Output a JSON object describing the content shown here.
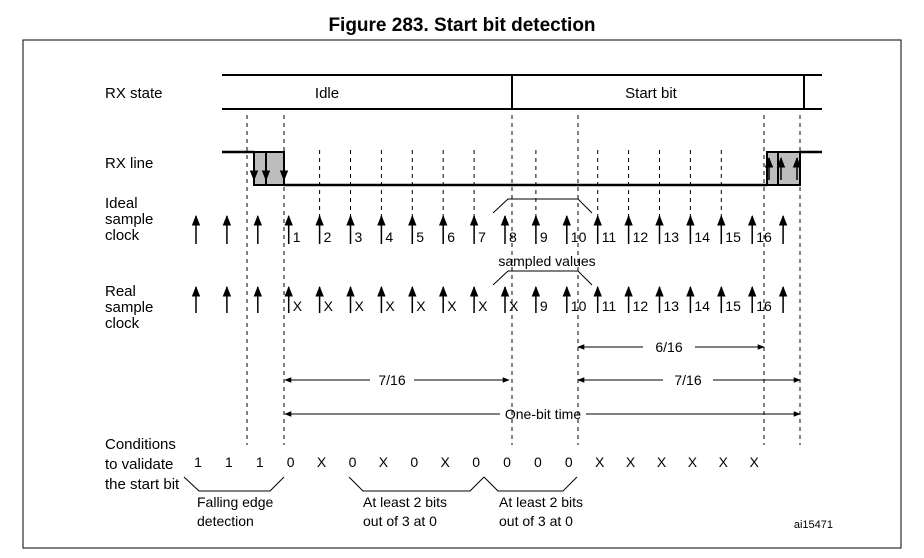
{
  "figure": {
    "title": "Figure 283. Start bit detection",
    "ref": "ai15471"
  },
  "rows": {
    "rx_state": "RX state",
    "rx_line": "RX line",
    "ideal_clock": [
      "Ideal",
      "sample",
      "clock"
    ],
    "real_clock": [
      "Real",
      "sample",
      "clock"
    ],
    "conditions": [
      "Conditions",
      "to validate",
      "the start bit"
    ]
  },
  "rx_state": {
    "idle": "Idle",
    "start_bit": "Start bit"
  },
  "ideal_clock_labels": [
    "1",
    "2",
    "3",
    "4",
    "5",
    "6",
    "7",
    "8",
    "9",
    "10",
    "11",
    "12",
    "13",
    "14",
    "15",
    "16"
  ],
  "real_clock_labels": [
    "X",
    "X",
    "X",
    "X",
    "X",
    "X",
    "X",
    "X",
    "9",
    "10",
    "11",
    "12",
    "13",
    "14",
    "15",
    "16"
  ],
  "sampled_values_label": "sampled values",
  "spans": {
    "six_sixteenths": "6/16",
    "seven_sixteenths_left": "7/16",
    "seven_sixteenths_right": "7/16",
    "one_bit_time": "One-bit time"
  },
  "conditions_values": [
    "1",
    "1",
    "1",
    "0",
    "X",
    "0",
    "X",
    "0",
    "X",
    "0",
    "0",
    "0",
    "0",
    "X",
    "X",
    "X",
    "X",
    "X",
    "X"
  ],
  "groups": {
    "falling_edge": [
      "Falling edge",
      "detection"
    ],
    "bits_group_1": [
      "At least 2 bits",
      "out of 3 at 0"
    ],
    "bits_group_2": [
      "At least 2 bits",
      "out of 3 at 0"
    ]
  }
}
